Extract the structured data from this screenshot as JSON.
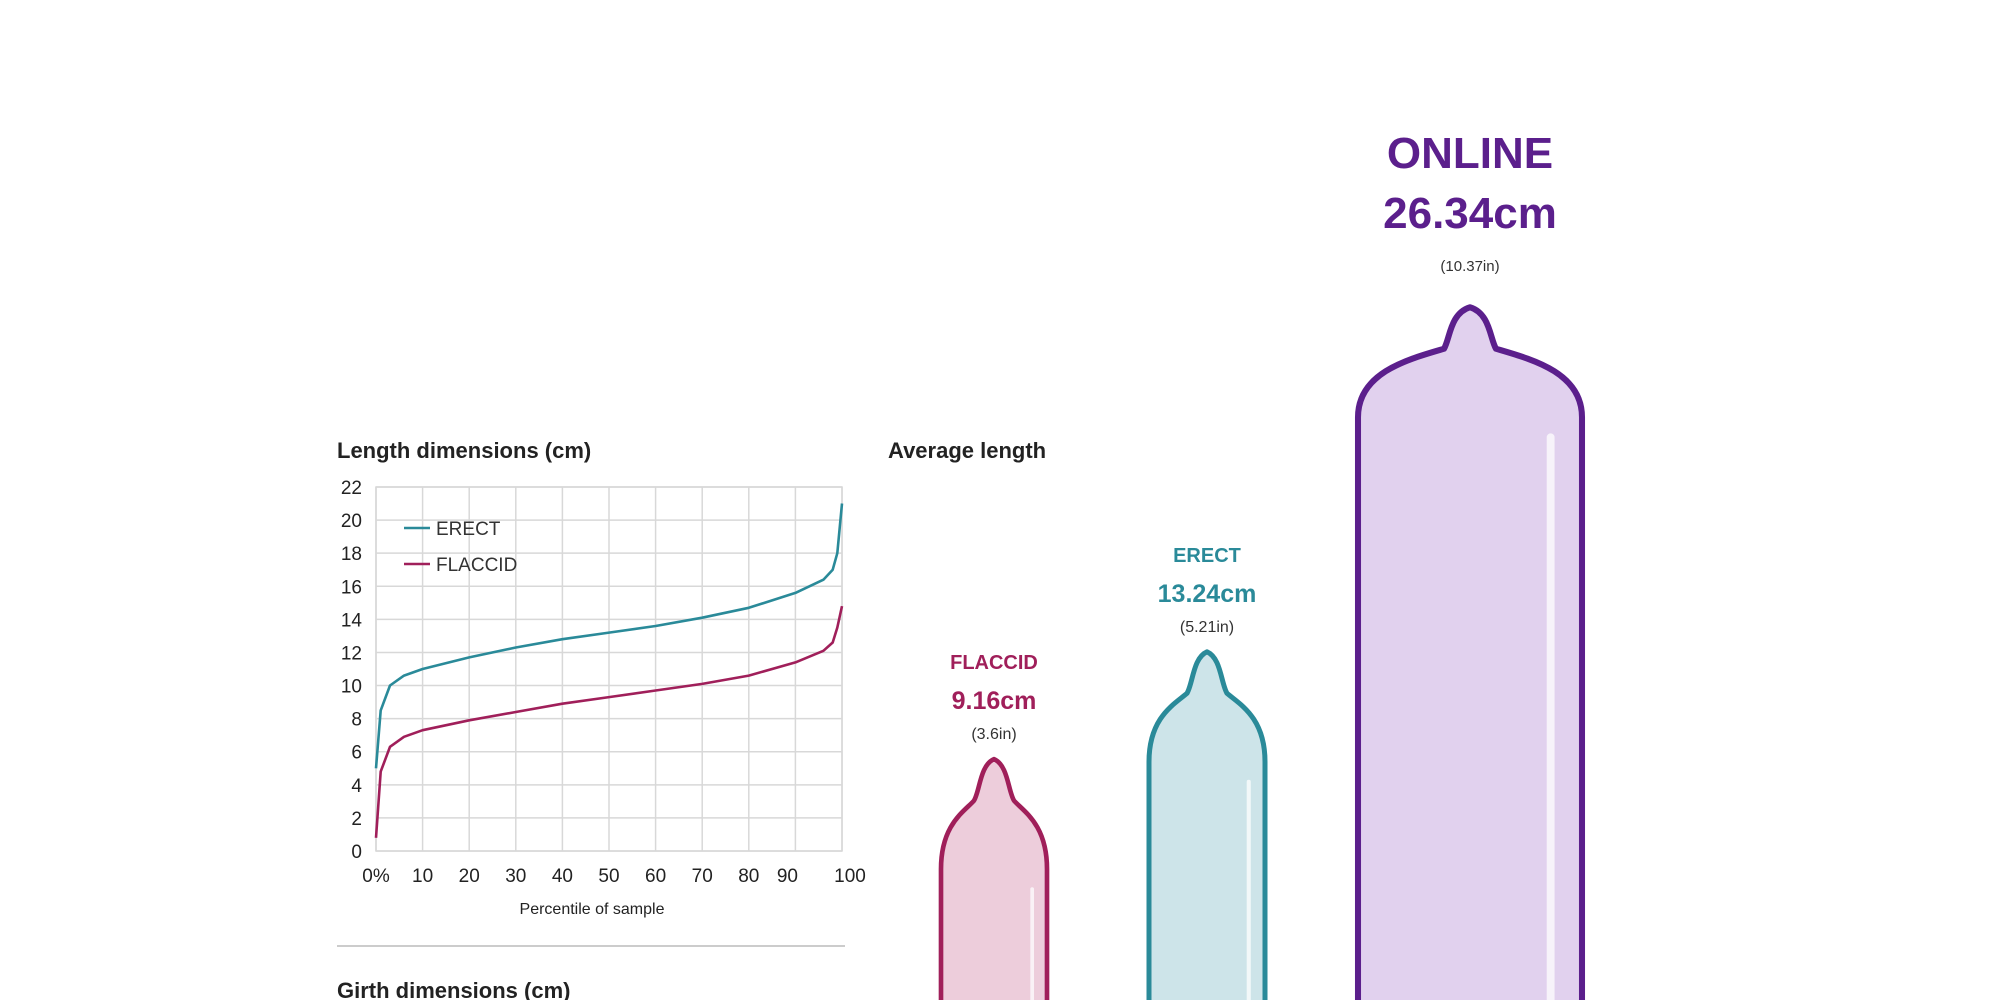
{
  "chart_data": [
    {
      "type": "line",
      "title": "Length dimensions (cm)",
      "xlabel": "Percentile of sample",
      "ylabel": "",
      "xlim": [
        0,
        100
      ],
      "ylim": [
        0,
        22
      ],
      "x_ticks": [
        "0%",
        "10",
        "20",
        "30",
        "40",
        "50",
        "60",
        "70",
        "80",
        "90",
        "100"
      ],
      "y_ticks": [
        "0",
        "2",
        "4",
        "6",
        "8",
        "10",
        "12",
        "14",
        "16",
        "18",
        "20",
        "22"
      ],
      "grid": true,
      "legend_position": "top-left",
      "series": [
        {
          "name": "ERECT",
          "color": "#2a8a99",
          "x": [
            0,
            1,
            3,
            6,
            10,
            20,
            30,
            40,
            50,
            60,
            70,
            80,
            90,
            96,
            98,
            99,
            100
          ],
          "y": [
            5.0,
            8.5,
            10.0,
            10.6,
            11.0,
            11.7,
            12.3,
            12.8,
            13.2,
            13.6,
            14.1,
            14.7,
            15.6,
            16.4,
            17.0,
            18.0,
            21.0
          ]
        },
        {
          "name": "FLACCID",
          "color": "#a01f5a",
          "x": [
            0,
            1,
            3,
            6,
            10,
            20,
            30,
            40,
            50,
            60,
            70,
            80,
            90,
            96,
            98,
            99,
            100
          ],
          "y": [
            0.8,
            4.8,
            6.3,
            6.9,
            7.3,
            7.9,
            8.4,
            8.9,
            9.3,
            9.7,
            10.1,
            10.6,
            11.4,
            12.1,
            12.6,
            13.5,
            14.8
          ]
        }
      ]
    },
    {
      "type": "bar",
      "title": "Average length",
      "categories": [
        "FLACCID",
        "ERECT",
        "ONLINE"
      ],
      "values": [
        9.16,
        13.24,
        26.34
      ],
      "value_labels": [
        "9.16cm",
        "13.24cm",
        "26.34cm"
      ],
      "inch_labels": [
        "(3.6in)",
        "(5.21in)",
        "(10.37in)"
      ],
      "colors": [
        "#a01f5a",
        "#2a8a99",
        "#5b1f8c"
      ],
      "fills": [
        "#edcddb",
        "#cde4e9",
        "#e1d1ee"
      ]
    }
  ],
  "girth_title": "Girth dimensions (cm)"
}
